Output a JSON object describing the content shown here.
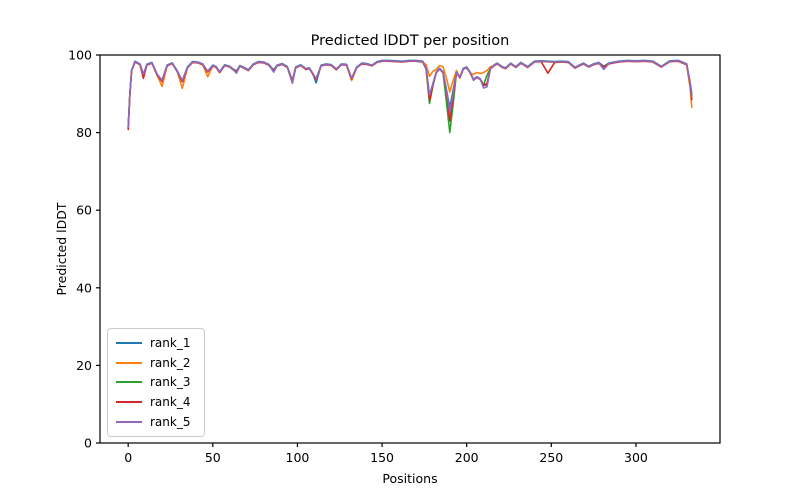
{
  "figure": {
    "background": "#ffffff"
  },
  "chart_data": {
    "type": "line",
    "title": "Predicted lDDT per position",
    "xlabel": "Positions",
    "ylabel": "Predicted lDDT",
    "xlim": [
      -16.65,
      349.65
    ],
    "ylim": [
      0,
      100
    ],
    "xticks": [
      0,
      50,
      100,
      150,
      200,
      250,
      300
    ],
    "yticks": [
      0,
      20,
      40,
      60,
      80,
      100
    ],
    "grid": false,
    "legend_position": "lower left",
    "axis_color": "#000000",
    "x": [
      0,
      1,
      2,
      4,
      7,
      9,
      11,
      14,
      17,
      20,
      23,
      26,
      29,
      32,
      35,
      38,
      41,
      44,
      47,
      50,
      52,
      54,
      57,
      60,
      62,
      64,
      66,
      68,
      71,
      74,
      77,
      80,
      83,
      86,
      88,
      91,
      94,
      97,
      99,
      102,
      105,
      107,
      109,
      111,
      114,
      117,
      120,
      123,
      126,
      129,
      132,
      135,
      138,
      141,
      144,
      147,
      150,
      154,
      158,
      162,
      166,
      170,
      174,
      176,
      178,
      180,
      182,
      184,
      186,
      188,
      190,
      192,
      194,
      196,
      198,
      200,
      202,
      204,
      206,
      208,
      210,
      212,
      214,
      216,
      218,
      221,
      223,
      226,
      229,
      232,
      236,
      240,
      244,
      248,
      252,
      256,
      260,
      264,
      266,
      269,
      272,
      275,
      278,
      281,
      284,
      287,
      290,
      295,
      300,
      305,
      310,
      315,
      320,
      325,
      330,
      332,
      333
    ],
    "series": [
      {
        "name": "rank_1",
        "color": "#1f77b4",
        "values": [
          81.3,
          90.1,
          96.1,
          98.4,
          97.7,
          94.9,
          97.6,
          98.1,
          95.1,
          93.4,
          97.4,
          98.0,
          95.9,
          93.3,
          96.9,
          98.3,
          98.2,
          97.7,
          95.8,
          97.4,
          97.0,
          95.7,
          97.5,
          97.1,
          96.4,
          95.9,
          97.3,
          96.9,
          96.2,
          97.7,
          98.3,
          98.2,
          97.6,
          96.1,
          97.4,
          97.8,
          97.0,
          93.4,
          96.9,
          97.5,
          96.5,
          96.7,
          95.3,
          92.8,
          97.4,
          97.7,
          97.5,
          96.4,
          97.7,
          97.6,
          94.0,
          96.9,
          97.9,
          97.8,
          97.4,
          98.3,
          98.6,
          98.6,
          98.5,
          98.4,
          98.6,
          98.6,
          98.4,
          96.6,
          89.5,
          92.6,
          95.6,
          96.6,
          95.6,
          91.1,
          86.5,
          91.0,
          95.6,
          94.3,
          96.6,
          96.9,
          95.6,
          93.7,
          94.4,
          93.9,
          92.2,
          92.3,
          96.6,
          97.4,
          97.9,
          97.0,
          96.7,
          97.9,
          97.0,
          98.1,
          97.0,
          98.4,
          98.5,
          98.4,
          98.3,
          98.4,
          98.3,
          96.8,
          97.3,
          97.9,
          97.1,
          97.7,
          98.1,
          97.1,
          97.9,
          98.2,
          98.4,
          98.6,
          98.5,
          98.6,
          98.4,
          97.1,
          98.5,
          98.6,
          97.7,
          92.6,
          89.5
        ]
      },
      {
        "name": "rank_2",
        "color": "#ff7f0e",
        "values": [
          81.1,
          89.9,
          95.9,
          98.2,
          97.5,
          94.5,
          97.4,
          97.9,
          94.9,
          91.9,
          97.2,
          97.8,
          95.7,
          91.4,
          96.7,
          98.1,
          98.0,
          97.5,
          94.4,
          97.2,
          96.8,
          95.5,
          97.3,
          96.9,
          96.2,
          95.7,
          97.1,
          96.7,
          96.0,
          97.5,
          98.1,
          98.0,
          97.4,
          95.9,
          97.2,
          97.6,
          96.8,
          93.0,
          96.7,
          97.3,
          96.3,
          96.5,
          95.1,
          93.7,
          97.2,
          97.5,
          97.3,
          96.2,
          97.5,
          97.4,
          93.4,
          96.7,
          97.7,
          97.6,
          97.2,
          98.1,
          98.4,
          98.4,
          98.3,
          98.2,
          98.4,
          98.4,
          98.2,
          97.5,
          94.5,
          95.8,
          96.3,
          97.3,
          97.0,
          94.0,
          90.5,
          93.5,
          96.0,
          94.1,
          96.4,
          96.7,
          95.4,
          95.0,
          95.5,
          95.2,
          95.5,
          96.0,
          97.0,
          97.2,
          97.7,
          96.8,
          96.5,
          97.7,
          96.8,
          97.9,
          96.8,
          98.2,
          98.3,
          98.2,
          98.1,
          98.2,
          98.1,
          96.6,
          97.1,
          97.7,
          96.9,
          97.5,
          97.9,
          96.9,
          97.7,
          98.0,
          98.2,
          98.4,
          98.3,
          98.4,
          98.2,
          96.9,
          98.3,
          98.4,
          97.5,
          91.5,
          86.5
        ]
      },
      {
        "name": "rank_3",
        "color": "#2ca02c",
        "values": [
          81.2,
          90.0,
          96.0,
          98.3,
          97.6,
          94.8,
          97.5,
          98.0,
          95.0,
          93.3,
          97.3,
          97.9,
          95.8,
          93.2,
          96.8,
          98.2,
          98.1,
          97.6,
          95.7,
          97.3,
          96.9,
          95.6,
          97.4,
          97.0,
          96.3,
          95.8,
          97.2,
          96.8,
          96.1,
          97.6,
          98.2,
          98.1,
          97.5,
          96.0,
          97.3,
          97.7,
          96.9,
          93.3,
          96.8,
          97.4,
          96.4,
          96.6,
          95.2,
          93.8,
          97.3,
          97.6,
          97.4,
          96.3,
          97.6,
          97.5,
          93.9,
          96.8,
          97.8,
          97.7,
          97.3,
          98.2,
          98.5,
          98.5,
          98.4,
          98.3,
          98.5,
          98.5,
          98.3,
          96.5,
          87.5,
          92.0,
          95.5,
          96.5,
          95.5,
          88.0,
          80.0,
          87.5,
          95.5,
          94.2,
          96.5,
          96.8,
          95.5,
          93.6,
          94.3,
          93.8,
          92.3,
          94.8,
          96.5,
          97.3,
          97.8,
          96.9,
          96.6,
          97.8,
          96.9,
          98.0,
          96.9,
          98.3,
          98.4,
          98.3,
          98.2,
          98.3,
          98.2,
          96.7,
          97.2,
          97.8,
          97.0,
          97.6,
          98.0,
          97.0,
          97.8,
          98.1,
          98.3,
          98.5,
          98.4,
          98.5,
          98.3,
          97.0,
          98.4,
          98.5,
          97.6,
          93.0,
          90.0
        ]
      },
      {
        "name": "rank_4",
        "color": "#d62728",
        "values": [
          80.8,
          89.9,
          95.9,
          98.2,
          97.5,
          94.0,
          97.4,
          97.9,
          94.9,
          93.2,
          97.2,
          97.8,
          95.7,
          93.1,
          96.7,
          98.1,
          98.0,
          97.5,
          95.6,
          97.2,
          96.8,
          95.5,
          97.3,
          96.9,
          96.2,
          95.7,
          97.1,
          96.7,
          96.0,
          97.5,
          98.1,
          98.0,
          97.4,
          95.9,
          97.2,
          97.6,
          96.8,
          93.2,
          96.7,
          97.3,
          96.3,
          96.5,
          95.1,
          93.7,
          97.2,
          97.5,
          97.3,
          96.2,
          97.5,
          97.4,
          93.8,
          96.7,
          97.7,
          97.6,
          97.2,
          98.1,
          98.4,
          98.4,
          98.3,
          98.2,
          98.4,
          98.4,
          98.2,
          96.4,
          88.3,
          92.4,
          95.4,
          96.4,
          95.4,
          90.9,
          83.0,
          89.5,
          95.4,
          94.1,
          96.4,
          96.7,
          95.4,
          93.5,
          94.2,
          93.7,
          92.2,
          92.7,
          96.4,
          97.2,
          97.7,
          96.8,
          96.5,
          97.7,
          96.8,
          97.9,
          96.8,
          98.2,
          98.3,
          95.3,
          98.1,
          98.2,
          98.1,
          96.6,
          97.1,
          97.7,
          96.9,
          97.5,
          97.9,
          96.9,
          97.7,
          98.0,
          98.2,
          98.4,
          98.3,
          98.4,
          98.2,
          96.9,
          98.3,
          98.4,
          97.5,
          92.4,
          88.5
        ]
      },
      {
        "name": "rank_5",
        "color": "#9467bd",
        "values": [
          81.4,
          90.2,
          96.0,
          98.3,
          97.6,
          95.0,
          97.5,
          98.0,
          95.1,
          93.5,
          97.3,
          97.9,
          95.8,
          93.4,
          96.8,
          98.2,
          98.1,
          97.6,
          95.8,
          97.3,
          96.9,
          95.7,
          97.4,
          97.0,
          96.3,
          95.3,
          97.2,
          96.8,
          96.1,
          97.6,
          98.2,
          98.1,
          97.5,
          95.6,
          97.3,
          97.7,
          96.9,
          92.7,
          96.8,
          97.4,
          96.5,
          96.6,
          95.3,
          93.9,
          97.3,
          97.6,
          97.4,
          96.4,
          97.6,
          97.5,
          94.0,
          96.8,
          97.8,
          97.7,
          97.3,
          98.2,
          98.5,
          98.5,
          98.4,
          98.3,
          98.5,
          98.5,
          98.3,
          96.6,
          89.7,
          92.6,
          95.5,
          96.5,
          95.5,
          91.2,
          85.3,
          90.2,
          95.5,
          94.2,
          96.5,
          96.8,
          95.5,
          93.6,
          94.3,
          93.8,
          91.5,
          91.8,
          96.5,
          97.3,
          97.8,
          96.9,
          96.6,
          97.8,
          96.9,
          98.0,
          96.9,
          98.3,
          98.4,
          98.3,
          98.2,
          98.3,
          98.2,
          96.7,
          97.2,
          97.8,
          97.0,
          97.6,
          98.0,
          96.3,
          97.8,
          98.1,
          98.3,
          98.5,
          98.4,
          98.5,
          98.3,
          97.0,
          98.4,
          98.5,
          97.6,
          92.7,
          89.0
        ]
      }
    ]
  },
  "legend": {
    "items": [
      {
        "label": "rank_1",
        "color": "#1f77b4"
      },
      {
        "label": "rank_2",
        "color": "#ff7f0e"
      },
      {
        "label": "rank_3",
        "color": "#2ca02c"
      },
      {
        "label": "rank_4",
        "color": "#d62728"
      },
      {
        "label": "rank_5",
        "color": "#9467bd"
      }
    ]
  }
}
